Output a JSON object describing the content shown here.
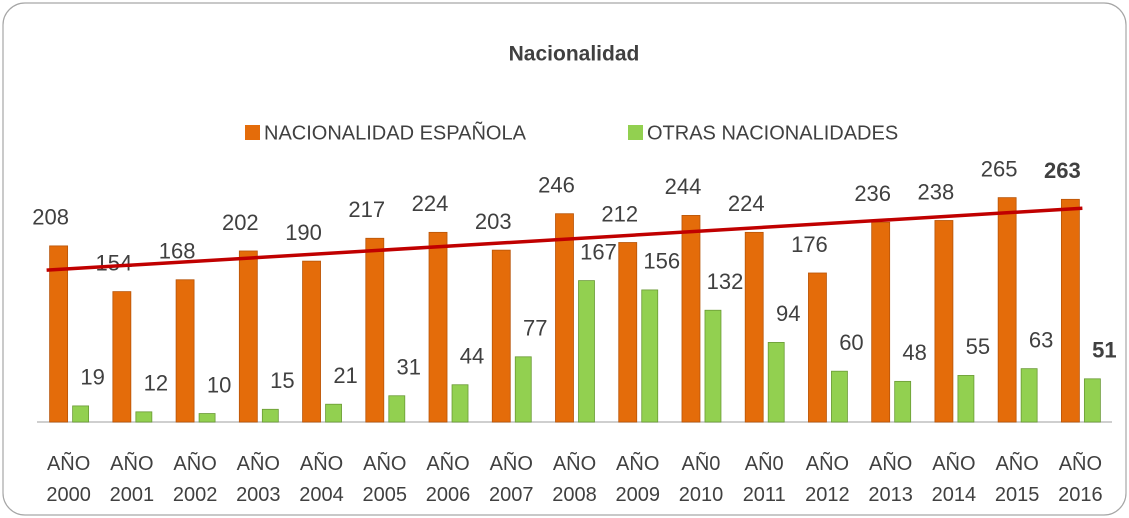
{
  "chart_data": {
    "type": "bar",
    "title": "Nacionalidad",
    "categories": [
      "AÑO 2000",
      "AÑO 2001",
      "AÑO 2002",
      "AÑO 2003",
      "AÑO 2004",
      "AÑO 2005",
      "AÑO 2006",
      "AÑO 2007",
      "AÑO 2008",
      "AÑO 2009",
      "AÑ0 2010",
      "AÑ0 2011",
      "AÑO 2012",
      "AÑO 2013",
      "AÑO 2014",
      "AÑO 2015",
      "AÑO 2016"
    ],
    "series": [
      {
        "name": "NACIONALIDAD ESPAÑOLA",
        "color": "#e46c0a",
        "values": [
          208,
          154,
          168,
          202,
          190,
          217,
          224,
          203,
          246,
          212,
          244,
          224,
          176,
          236,
          238,
          265,
          263
        ]
      },
      {
        "name": "OTRAS NACIONALIDADES",
        "color": "#92d050",
        "values": [
          19,
          12,
          10,
          15,
          21,
          31,
          44,
          77,
          167,
          156,
          132,
          94,
          60,
          48,
          55,
          63,
          51
        ]
      }
    ],
    "ylim": [
      0,
      300
    ],
    "trendline_color": "#c00000"
  }
}
